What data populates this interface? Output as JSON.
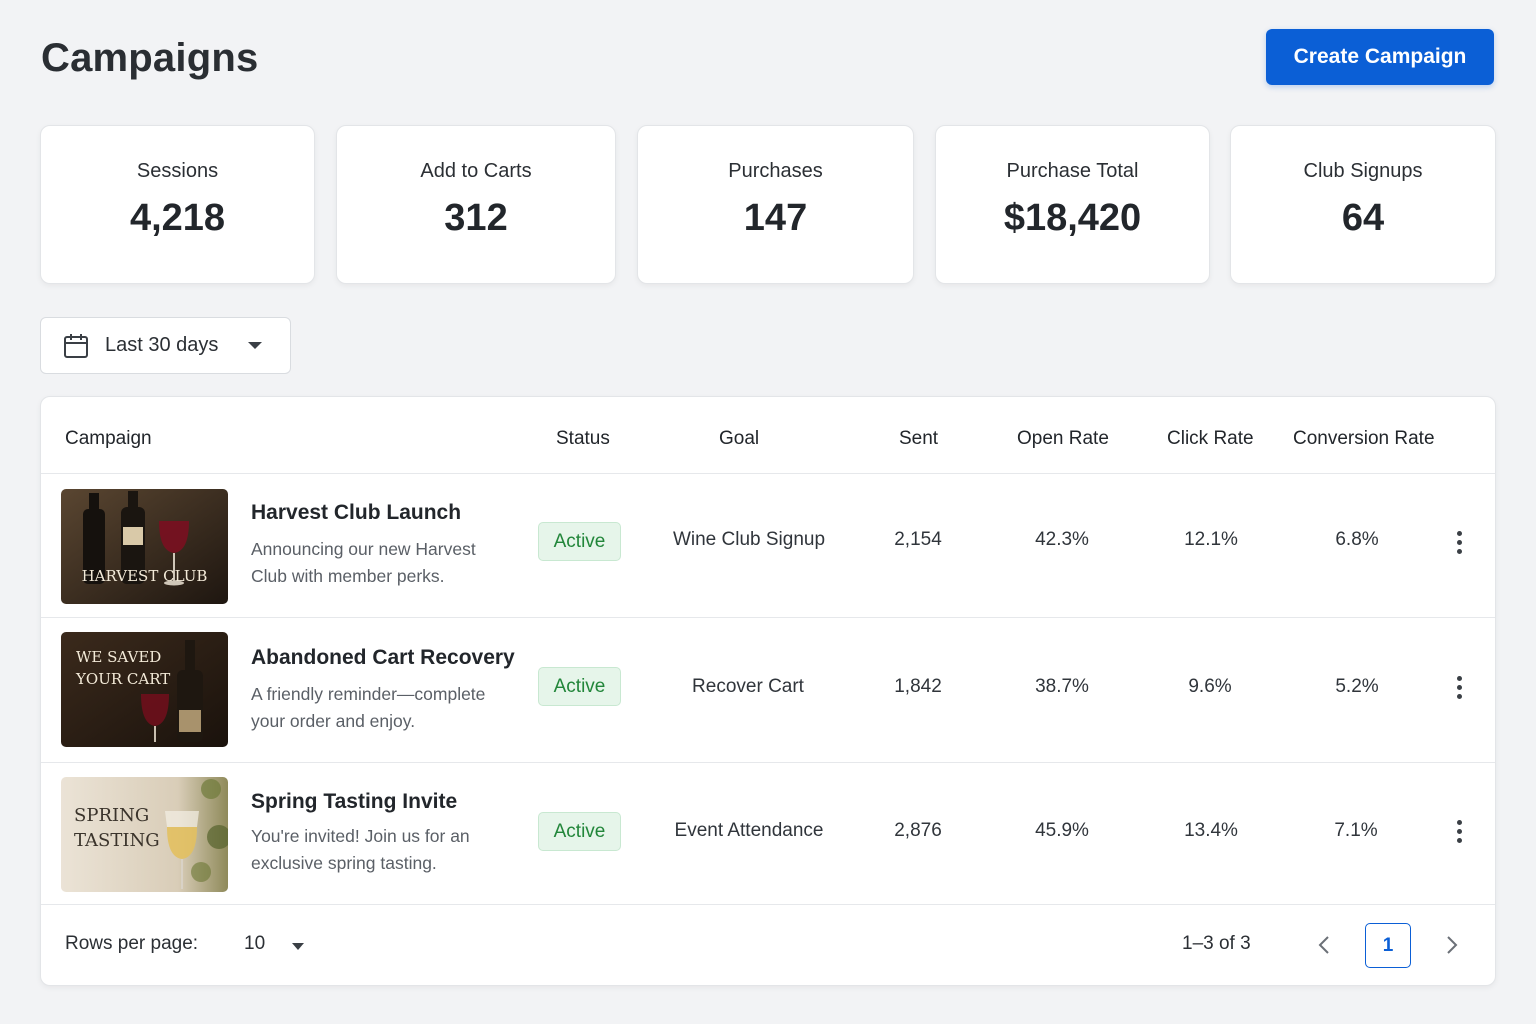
{
  "header": {
    "title": "Campaigns",
    "create_label": "Create Campaign",
    "accent_color": "#0b5fd6"
  },
  "stats": [
    {
      "label": "Sessions",
      "value": "4,218"
    },
    {
      "label": "Add to Carts",
      "value": "312"
    },
    {
      "label": "Purchases",
      "value": "147"
    },
    {
      "label": "Purchase Total",
      "value": "$18,420"
    },
    {
      "label": "Club Signups",
      "value": "64"
    }
  ],
  "filter": {
    "icon": "calendar-icon",
    "selected": "Last 30 days"
  },
  "table": {
    "columns": [
      "Campaign",
      "Status",
      "Goal",
      "Sent",
      "Open Rate",
      "Click Rate",
      "Conversion Rate"
    ],
    "rows": [
      {
        "thumb_text": [
          "HARVEST CLUB"
        ],
        "title": "Harvest Club Launch",
        "description": "Announcing our new Harvest Club with member perks.",
        "status": "Active",
        "goal": "Wine Club Signup",
        "sent": "2,154",
        "open_rate": "42.3%",
        "click_rate": "12.1%",
        "conversion_rate": "6.8%"
      },
      {
        "thumb_text": [
          "WE SAVED",
          "YOUR CART"
        ],
        "title": "Abandoned Cart Recovery",
        "description": "A friendly reminder—complete your order and enjoy.",
        "status": "Active",
        "goal": "Recover Cart",
        "sent": "1,842",
        "open_rate": "38.7%",
        "click_rate": "9.6%",
        "conversion_rate": "5.2%"
      },
      {
        "thumb_text": [
          "SPRING",
          "TASTING"
        ],
        "title": "Spring Tasting Invite",
        "description": "You're invited! Join us for an exclusive spring tasting.",
        "status": "Active",
        "goal": "Event Attendance",
        "sent": "2,876",
        "open_rate": "45.9%",
        "click_rate": "13.4%",
        "conversion_rate": "7.1%"
      }
    ],
    "status_color": "#22863a"
  },
  "pagination": {
    "rows_per_page_label": "Rows per page:",
    "rows_per_page": "10",
    "range": "1–3 of 3",
    "current_page": "1"
  }
}
